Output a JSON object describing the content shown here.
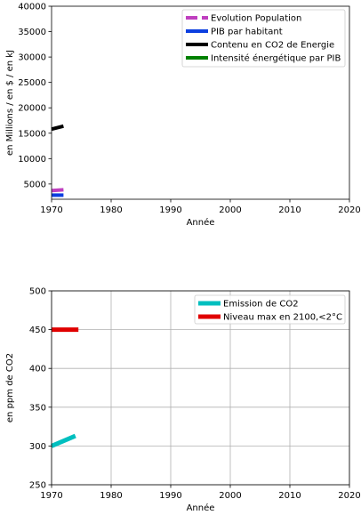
{
  "chart_data": [
    {
      "type": "line",
      "xlabel": "Année",
      "ylabel": "en Millions / en $ / en kJ",
      "xlim": [
        1970,
        2020
      ],
      "ylim": [
        2000,
        40000
      ],
      "x_ticks": [
        "1970",
        "1980",
        "1990",
        "2000",
        "2010",
        "2020"
      ],
      "y_ticks": [
        "5000",
        "10000",
        "15000",
        "20000",
        "25000",
        "30000",
        "35000",
        "40000"
      ],
      "grid": false,
      "legend_position": "top-right",
      "series": [
        {
          "name": "Evolution Population",
          "color": "#bf3fbf",
          "style": "dashed",
          "x": [
            1970,
            1972
          ],
          "y": [
            3700,
            3850
          ]
        },
        {
          "name": "PIB par habitant",
          "color": "#0c3fe0",
          "style": "solid",
          "x": [
            1970,
            1972
          ],
          "y": [
            2800,
            2800
          ]
        },
        {
          "name": "Contenu en CO2 de Energie",
          "color": "#000000",
          "style": "solid",
          "x": [
            1970,
            1972
          ],
          "y": [
            15800,
            16400
          ]
        },
        {
          "name": "Intensité énergétique par PIB",
          "color": "#008000",
          "style": "solid",
          "x": [],
          "y": []
        }
      ]
    },
    {
      "type": "line",
      "xlabel": "Année",
      "ylabel": "en ppm de CO2",
      "xlim": [
        1970,
        2020
      ],
      "ylim": [
        250,
        500
      ],
      "x_ticks": [
        "1970",
        "1980",
        "1990",
        "2000",
        "2010",
        "2020"
      ],
      "y_ticks": [
        "250",
        "300",
        "350",
        "400",
        "450",
        "500"
      ],
      "grid": true,
      "legend_position": "top-right",
      "series": [
        {
          "name": "Emission de CO2",
          "color": "#00bfbf",
          "style": "solid",
          "x": [
            1970,
            1974
          ],
          "y": [
            300,
            313
          ]
        },
        {
          "name": "Niveau max en 2100,<2°C",
          "color": "#e00000",
          "style": "solid",
          "x": [
            1970,
            1974.5
          ],
          "y": [
            450,
            450
          ]
        }
      ]
    }
  ]
}
